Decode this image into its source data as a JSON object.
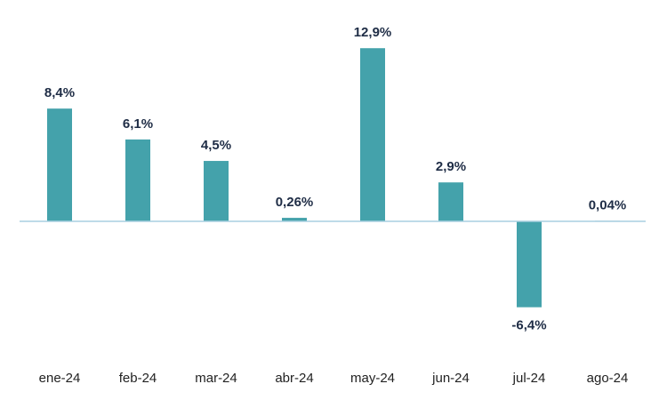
{
  "chart_data": {
    "type": "bar",
    "title": "",
    "xlabel": "",
    "ylabel": "",
    "categories": [
      "ene-24",
      "feb-24",
      "mar-24",
      "abr-24",
      "may-24",
      "jun-24",
      "jul-24",
      "ago-24"
    ],
    "values": [
      8.4,
      6.1,
      4.5,
      0.26,
      12.9,
      2.9,
      -6.4,
      0.04
    ],
    "value_labels": [
      "8,4%",
      "6,1%",
      "4,5%",
      "0,26%",
      "12,9%",
      "2,9%",
      "-6,4%",
      "0,04%"
    ],
    "ylim": [
      -10,
      13
    ],
    "grid": false,
    "legend": "none",
    "colors": {
      "bar": "#44a2ab",
      "zero_line": "#a9cfe0",
      "label": "#1e2c45",
      "tick": "#222222"
    }
  }
}
